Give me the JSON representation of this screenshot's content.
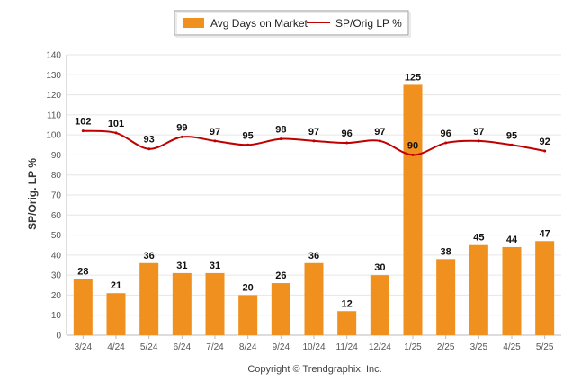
{
  "colors": {
    "bar": "#F0901E",
    "line": "#C00000",
    "grid": "#E6E6E6",
    "axis": "#BBBBBB"
  },
  "chart_data": {
    "type": "bar",
    "ylabel": "SP/Orig. LP %",
    "ylim": [
      0,
      140
    ],
    "y_ticks": [
      0,
      10,
      20,
      30,
      40,
      50,
      60,
      70,
      80,
      90,
      100,
      110,
      120,
      130,
      140
    ],
    "grid": true,
    "legend_position": "top-center",
    "categories": [
      "3/24",
      "4/24",
      "5/24",
      "6/24",
      "7/24",
      "8/24",
      "9/24",
      "10/24",
      "11/24",
      "12/24",
      "1/25",
      "2/25",
      "3/25",
      "4/25",
      "5/25"
    ],
    "series": [
      {
        "name": "Avg Days on Market",
        "type": "bar",
        "values": [
          28,
          21,
          36,
          31,
          31,
          20,
          26,
          36,
          12,
          30,
          125,
          38,
          45,
          44,
          47
        ]
      },
      {
        "name": "SP/Orig LP %",
        "type": "line",
        "values": [
          102,
          101,
          93,
          99,
          97,
          95,
          98,
          97,
          96,
          97,
          90,
          96,
          97,
          95,
          92
        ]
      }
    ]
  },
  "footer": {
    "copyright": "Copyright © Trendgraphix, Inc."
  }
}
